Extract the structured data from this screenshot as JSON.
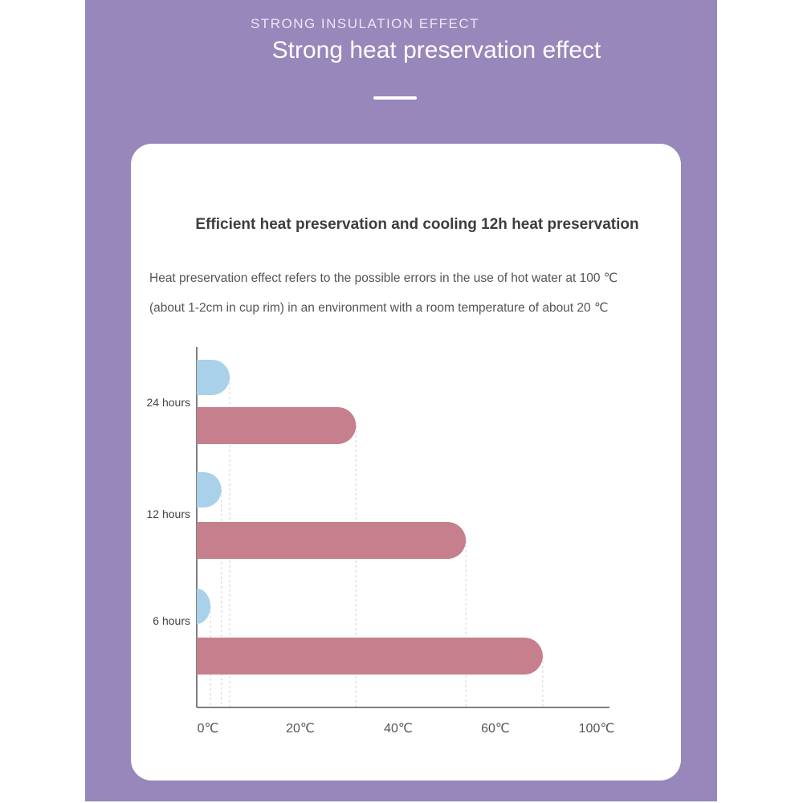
{
  "header": {
    "kicker": "STRONG INSULATION EFFECT",
    "headline": "Strong heat preservation effect"
  },
  "card": {
    "title": "Efficient heat preservation and cooling 12h heat preservation",
    "description_line1": "Heat preservation effect refers to the possible errors in the use of hot water at 100 ℃",
    "description_line2": "(about 1-2cm in cup rim) in an environment with a room temperature of about 20 ℃"
  },
  "colors": {
    "background": "#9787ba",
    "card": "#ffffff",
    "series_blue": "#a9d1ea",
    "series_pink": "#c67f8d"
  },
  "chart_data": {
    "type": "bar",
    "orientation": "horizontal",
    "categories": [
      "24 hours",
      "12 hours",
      "6 hours"
    ],
    "series": [
      {
        "values": [
          6,
          4.5,
          2.5
        ],
        "color": "#a9d1ea"
      },
      {
        "values": [
          29,
          49,
          63
        ],
        "color": "#c67f8d"
      }
    ],
    "x_ticks": [
      "0℃",
      "20℃",
      "40℃",
      "60℃",
      "100℃"
    ],
    "xlim": [
      0,
      80
    ],
    "title": "",
    "xlabel": "",
    "ylabel": "",
    "grid": false,
    "reference_lines": "dashed vertical lines at each bar end"
  }
}
